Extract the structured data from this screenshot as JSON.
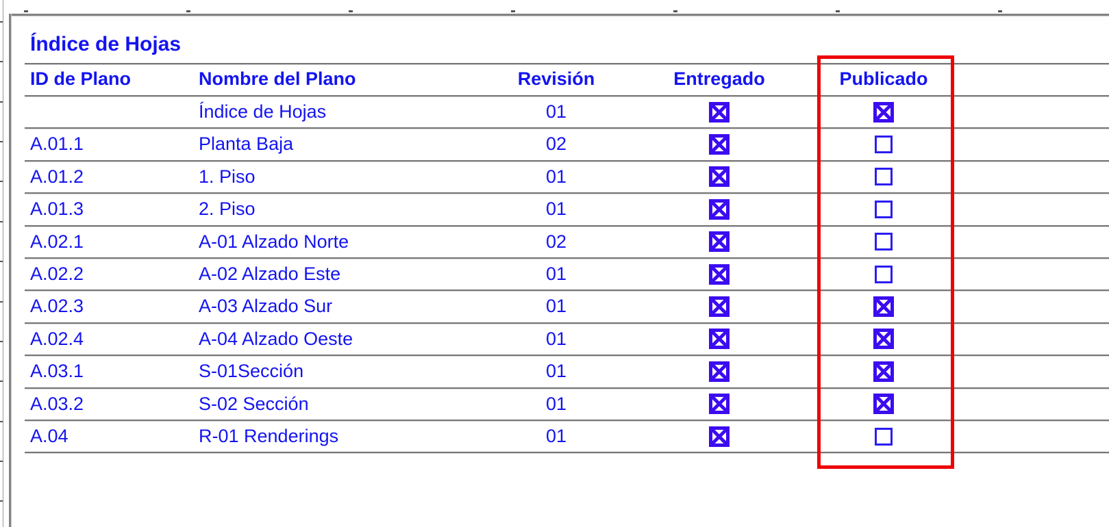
{
  "document": {
    "title": "Índice de Hojas",
    "columns": [
      "ID de Plano",
      "Nombre del Plano",
      "Revisión",
      "Entregado",
      "Publicado"
    ],
    "rows": [
      {
        "id": "",
        "name": "Índice de Hojas",
        "revision": "01",
        "entregado": true,
        "publicado": true
      },
      {
        "id": "A.01.1",
        "name": "Planta Baja",
        "revision": "02",
        "entregado": true,
        "publicado": false
      },
      {
        "id": "A.01.2",
        "name": "1. Piso",
        "revision": "01",
        "entregado": true,
        "publicado": false
      },
      {
        "id": "A.01.3",
        "name": "2. Piso",
        "revision": "01",
        "entregado": true,
        "publicado": false
      },
      {
        "id": "A.02.1",
        "name": "A-01 Alzado Norte",
        "revision": "02",
        "entregado": true,
        "publicado": false
      },
      {
        "id": "A.02.2",
        "name": "A-02 Alzado Este",
        "revision": "01",
        "entregado": true,
        "publicado": false
      },
      {
        "id": "A.02.3",
        "name": "A-03 Alzado Sur",
        "revision": "01",
        "entregado": true,
        "publicado": true
      },
      {
        "id": "A.02.4",
        "name": "A-04 Alzado Oeste",
        "revision": "01",
        "entregado": true,
        "publicado": true
      },
      {
        "id": "A.03.1",
        "name": "S-01Sección",
        "revision": "01",
        "entregado": true,
        "publicado": true
      },
      {
        "id": "A.03.2",
        "name": "S-02 Sección",
        "revision": "01",
        "entregado": true,
        "publicado": true
      },
      {
        "id": "A.04",
        "name": "R-01 Renderings",
        "revision": "01",
        "entregado": true,
        "publicado": false
      }
    ],
    "highlight": {
      "column": "Publicado",
      "color": "#ee0101"
    },
    "colors": {
      "text_blue": "#1414f0",
      "checkbox_fill_blue": "#3c0cf0",
      "checkbox_border_blue": "#2a1df2",
      "table_line_gray": "#767676",
      "frame_gray": "#848484",
      "highlight_red": "#ee0101"
    }
  }
}
